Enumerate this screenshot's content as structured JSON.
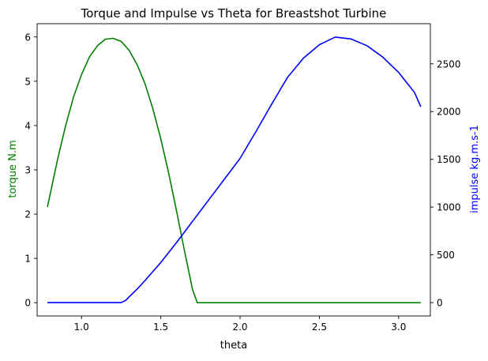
{
  "chart_data": {
    "type": "line",
    "title": "Torque and Impulse vs Theta for Breastshot Turbine",
    "xlabel": "theta",
    "xlim": [
      0.72,
      3.2
    ],
    "xticks": [
      1.0,
      1.5,
      2.0,
      2.5,
      3.0
    ],
    "xtick_labels": [
      "1.0",
      "1.5",
      "2.0",
      "2.5",
      "3.0"
    ],
    "grid": false,
    "axes": [
      {
        "side": "left",
        "label": "torque N.m",
        "color": "#008000",
        "ylim": [
          -0.3,
          6.3
        ],
        "ticks": [
          0,
          1,
          2,
          3,
          4,
          5,
          6
        ],
        "tick_labels": [
          "0",
          "1",
          "2",
          "3",
          "4",
          "5",
          "6"
        ]
      },
      {
        "side": "right",
        "label": "impulse kg.m.s-1",
        "color": "#0000ff",
        "ylim": [
          -140,
          2920
        ],
        "ticks": [
          0,
          500,
          1000,
          1500,
          2000,
          2500
        ],
        "tick_labels": [
          "0",
          "500",
          "1000",
          "1500",
          "2000",
          "2500"
        ]
      }
    ],
    "series": [
      {
        "axis": "left",
        "color": "#008000",
        "x": [
          0.785,
          0.85,
          0.9,
          0.95,
          1.0,
          1.05,
          1.1,
          1.15,
          1.2,
          1.25,
          1.3,
          1.35,
          1.4,
          1.45,
          1.5,
          1.55,
          1.6,
          1.65,
          1.7,
          1.73,
          1.8,
          2.0,
          2.5,
          3.0,
          3.14
        ],
        "y": [
          2.16,
          3.25,
          4.0,
          4.65,
          5.15,
          5.55,
          5.8,
          5.95,
          5.97,
          5.9,
          5.7,
          5.38,
          4.95,
          4.38,
          3.7,
          2.92,
          2.06,
          1.16,
          0.3,
          0.0,
          0.0,
          0.0,
          0.0,
          0.0,
          0.0
        ]
      },
      {
        "axis": "right",
        "color": "#0000ff",
        "x": [
          0.785,
          1.0,
          1.2,
          1.25,
          1.28,
          1.3,
          1.35,
          1.4,
          1.5,
          1.6,
          1.7,
          1.8,
          1.9,
          2.0,
          2.1,
          2.2,
          2.3,
          2.4,
          2.5,
          2.6,
          2.7,
          2.8,
          2.9,
          3.0,
          3.1,
          3.14
        ],
        "y": [
          0,
          0,
          0,
          0,
          25,
          60,
          140,
          230,
          420,
          630,
          850,
          1070,
          1290,
          1510,
          1790,
          2080,
          2360,
          2560,
          2700,
          2780,
          2760,
          2690,
          2570,
          2410,
          2200,
          2050
        ]
      }
    ]
  }
}
